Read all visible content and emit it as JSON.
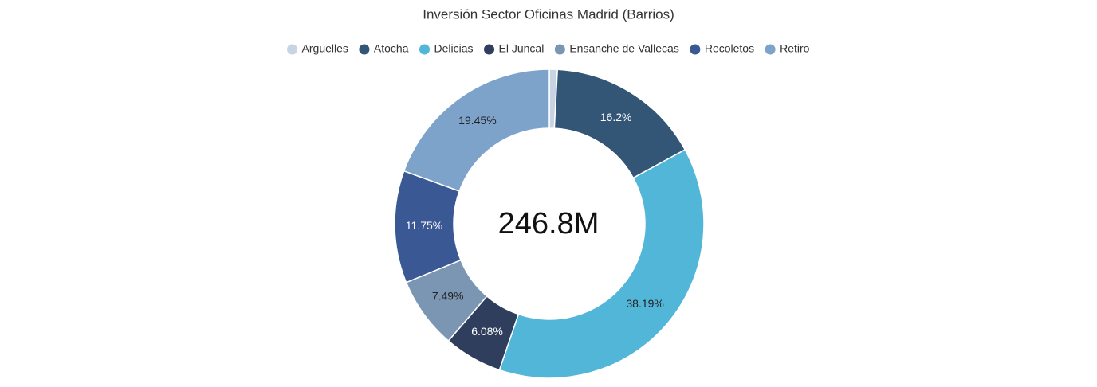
{
  "chart_data": {
    "type": "donut",
    "title": "Inversión Sector Oficinas Madrid (Barrios)",
    "center_label": "246.8M",
    "categories": [
      "Arguelles",
      "Atocha",
      "Delicias",
      "El Juncal",
      "Ensanche de Vallecas",
      "Recoletos",
      "Retiro"
    ],
    "values": [
      0.84,
      16.2,
      38.19,
      6.08,
      7.49,
      11.75,
      19.45
    ],
    "value_labels": [
      null,
      "16.2%",
      "38.19%",
      "6.08%",
      "7.49%",
      "11.75%",
      "19.45%"
    ],
    "colors": [
      "#c6d4e3",
      "#335677",
      "#52b6d9",
      "#2e3e5c",
      "#7b96b2",
      "#3a5894",
      "#7ea3cb"
    ],
    "legend": "top"
  }
}
